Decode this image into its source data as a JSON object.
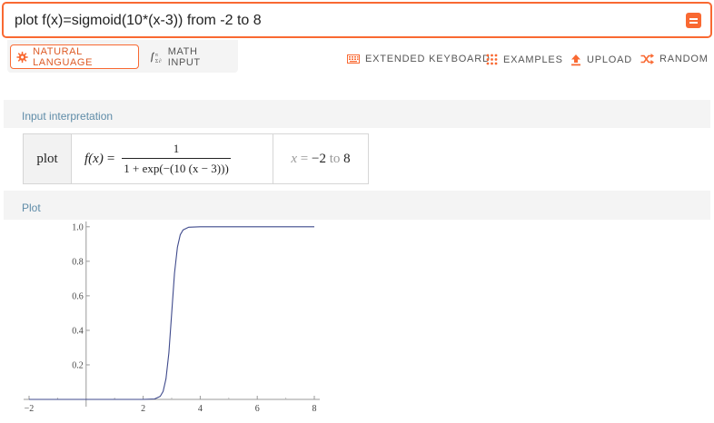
{
  "search": {
    "value": "plot f(x)=sigmoid(10*(x-3)) from -2 to 8"
  },
  "mode_tabs": {
    "natural_language": "NATURAL LANGUAGE",
    "math_input": "MATH INPUT"
  },
  "toolbar": {
    "extended_keyboard": "EXTENDED KEYBOARD",
    "examples": "EXAMPLES",
    "upload": "UPLOAD",
    "random": "RANDOM"
  },
  "colors": {
    "accent": "#f96932",
    "pod_title": "#5f8ca8",
    "curve": "#3f4a8c"
  },
  "input_interpretation": {
    "title": "Input interpretation",
    "command": "plot",
    "lhs": "f(x)",
    "equals": "=",
    "numerator": "1",
    "denominator": "1 + exp(−(10 (x − 3)))",
    "range_var": "x",
    "range_eq": "=",
    "range_from": "−2",
    "range_to_word": "to",
    "range_to": "8"
  },
  "plot": {
    "title": "Plot"
  },
  "chart_data": {
    "type": "line",
    "title": "",
    "xlabel": "",
    "ylabel": "",
    "xlim": [
      -2,
      8
    ],
    "ylim": [
      0,
      1.02
    ],
    "x_ticks": [
      -2,
      2,
      4,
      6,
      8
    ],
    "x_tick_labels": [
      "−2",
      "2",
      "4",
      "6",
      "8"
    ],
    "y_ticks": [
      0.2,
      0.4,
      0.6,
      0.8,
      1.0
    ],
    "y_tick_labels": [
      "0.2",
      "0.4",
      "0.6",
      "0.8",
      "1.0"
    ],
    "grid": false,
    "series": [
      {
        "x": [
          -2,
          -1,
          0,
          1,
          2,
          2.4,
          2.6,
          2.7,
          2.8,
          2.9,
          3.0,
          3.1,
          3.2,
          3.3,
          3.4,
          3.6,
          4,
          5,
          6,
          7,
          8
        ],
        "values": [
          0,
          0,
          0,
          0,
          5e-05,
          0.0025,
          0.018,
          0.047,
          0.119,
          0.269,
          0.5,
          0.731,
          0.881,
          0.953,
          0.982,
          0.9975,
          0.99995,
          1,
          1,
          1,
          1
        ]
      }
    ]
  }
}
